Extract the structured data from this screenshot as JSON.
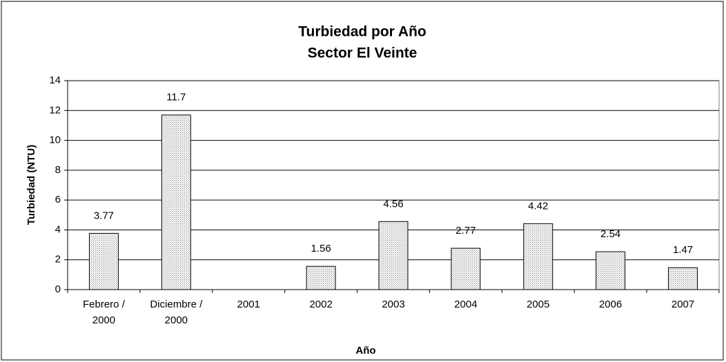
{
  "chart_data": {
    "type": "bar",
    "title": "Turbiedad por Año",
    "subtitle": "Sector El Veinte",
    "x_label": "Año",
    "y_label": "Turbiedad (NTU)",
    "categories": [
      "Febrero / 2000",
      "Diciembre / 2000",
      "2001",
      "2002",
      "2003",
      "2004",
      "2005",
      "2006",
      "2007"
    ],
    "values": [
      3.77,
      11.7,
      null,
      1.56,
      4.56,
      2.77,
      4.42,
      2.54,
      1.47
    ],
    "color": "#808080",
    "ylim": [
      0,
      14
    ],
    "yticks": [
      0,
      2,
      4,
      6,
      8,
      10,
      12,
      14
    ],
    "grid": true
  }
}
